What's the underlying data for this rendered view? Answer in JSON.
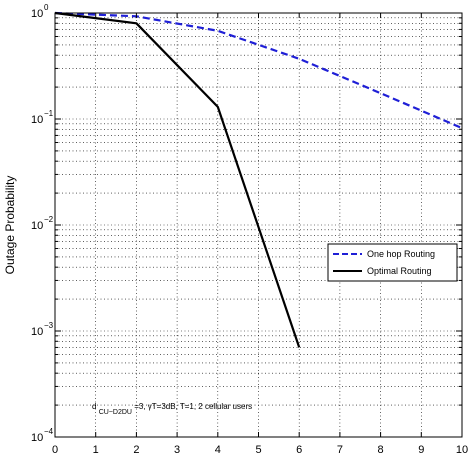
{
  "chart_data": {
    "type": "line",
    "title": "",
    "xlabel": "",
    "ylabel": "Outage Probability",
    "xlim": [
      0,
      10
    ],
    "ylim": [
      0.0001,
      1
    ],
    "yscale": "log",
    "grid": true,
    "grid_style": "dotted",
    "legend_position": "right",
    "xticks": [
      "0",
      "1",
      "2",
      "3",
      "4",
      "5",
      "6",
      "7",
      "8",
      "9",
      "10"
    ],
    "yticks": [
      {
        "base": "10",
        "exp": "0"
      },
      {
        "base": "10",
        "exp": "−1"
      },
      {
        "base": "10",
        "exp": "−2"
      },
      {
        "base": "10",
        "exp": "−3"
      },
      {
        "base": "10",
        "exp": "−4"
      }
    ],
    "series": [
      {
        "name": "One hop Routing",
        "color": "#1f1fd6",
        "line_style": "dashed",
        "x": [
          0,
          2,
          4,
          6,
          8,
          10
        ],
        "y": [
          1.0,
          0.93,
          0.68,
          0.37,
          0.175,
          0.082
        ]
      },
      {
        "name": "Optimal Routing",
        "color": "#000000",
        "line_style": "solid",
        "x": [
          0,
          2,
          4,
          6
        ],
        "y": [
          1.0,
          0.8,
          0.13,
          0.0007
        ]
      }
    ],
    "annotation": {
      "prefix": "d",
      "subscript": "CU−D2DU",
      "suffix": "=3, γT=3dB, T=1, 2 cellular users"
    }
  }
}
